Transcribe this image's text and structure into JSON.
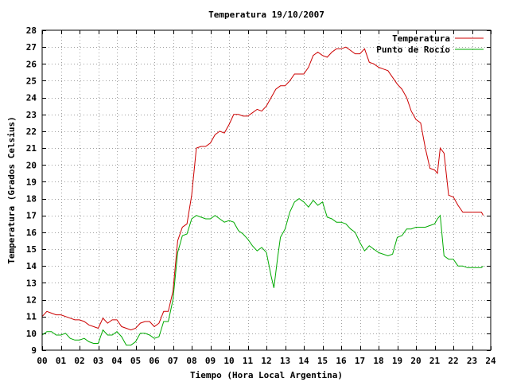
{
  "chart_data": {
    "type": "line",
    "title": "Temperatura 19/10/2007",
    "xlabel": "Tiempo (Hora Local Argentina)",
    "ylabel": "Temperatura (Grados Celsius)",
    "xlim": [
      0,
      24
    ],
    "ylim": [
      9,
      28
    ],
    "x_ticks": [
      "00",
      "01",
      "02",
      "03",
      "04",
      "05",
      "06",
      "07",
      "08",
      "09",
      "10",
      "11",
      "12",
      "13",
      "14",
      "15",
      "16",
      "17",
      "18",
      "19",
      "20",
      "21",
      "22",
      "23",
      "24"
    ],
    "y_ticks": [
      9,
      10,
      11,
      12,
      13,
      14,
      15,
      16,
      17,
      18,
      19,
      20,
      21,
      22,
      23,
      24,
      25,
      26,
      27,
      28
    ],
    "grid": true,
    "legend_position": "top-right",
    "series": [
      {
        "name": "Temperatura",
        "color": "#cc0000",
        "x": [
          0.0,
          0.25,
          0.5,
          0.75,
          1.0,
          1.25,
          1.5,
          1.75,
          2.0,
          2.25,
          2.5,
          2.75,
          3.0,
          3.25,
          3.5,
          3.75,
          4.0,
          4.25,
          4.5,
          4.75,
          5.0,
          5.25,
          5.5,
          5.75,
          6.0,
          6.25,
          6.5,
          6.75,
          7.0,
          7.25,
          7.5,
          7.75,
          8.0,
          8.25,
          8.5,
          8.75,
          9.0,
          9.25,
          9.5,
          9.75,
          10.0,
          10.25,
          10.5,
          10.75,
          11.0,
          11.25,
          11.5,
          11.75,
          12.0,
          12.25,
          12.5,
          12.75,
          13.0,
          13.25,
          13.5,
          13.75,
          14.0,
          14.25,
          14.5,
          14.75,
          15.0,
          15.25,
          15.5,
          15.75,
          16.0,
          16.25,
          16.5,
          16.75,
          17.0,
          17.25,
          17.5,
          17.75,
          18.0,
          18.25,
          18.5,
          18.75,
          19.0,
          19.25,
          19.5,
          19.75,
          20.0,
          20.25,
          20.5,
          20.75,
          21.0,
          21.15,
          21.3,
          21.5,
          21.75,
          22.0,
          22.25,
          22.5,
          22.75,
          23.0,
          23.25,
          23.5,
          23.6
        ],
        "values": [
          11.0,
          11.3,
          11.2,
          11.1,
          11.1,
          11.0,
          10.9,
          10.8,
          10.8,
          10.7,
          10.5,
          10.4,
          10.3,
          10.9,
          10.6,
          10.8,
          10.8,
          10.4,
          10.3,
          10.2,
          10.3,
          10.6,
          10.7,
          10.7,
          10.4,
          10.6,
          11.3,
          11.3,
          12.5,
          15.5,
          16.3,
          16.5,
          18.2,
          21.0,
          21.1,
          21.1,
          21.3,
          21.8,
          22.0,
          21.9,
          22.4,
          23.0,
          23.0,
          22.9,
          22.9,
          23.1,
          23.3,
          23.2,
          23.5,
          24.0,
          24.5,
          24.7,
          24.7,
          25.0,
          25.4,
          25.4,
          25.4,
          25.8,
          26.5,
          26.7,
          26.5,
          26.4,
          26.7,
          26.9,
          26.9,
          27.0,
          26.8,
          26.6,
          26.6,
          26.9,
          26.1,
          26.0,
          25.8,
          25.7,
          25.6,
          25.2,
          24.8,
          24.5,
          24.0,
          23.2,
          22.7,
          22.5,
          21.0,
          19.8,
          19.7,
          19.5,
          21.0,
          20.7,
          18.2,
          18.1,
          17.6,
          17.2,
          17.2,
          17.2,
          17.2,
          17.2,
          17.0
        ]
      },
      {
        "name": "Punto de Rocío",
        "color": "#00aa00",
        "x": [
          0.0,
          0.25,
          0.5,
          0.75,
          1.0,
          1.25,
          1.5,
          1.75,
          2.0,
          2.25,
          2.5,
          2.75,
          3.0,
          3.25,
          3.5,
          3.75,
          4.0,
          4.25,
          4.5,
          4.75,
          5.0,
          5.25,
          5.5,
          5.75,
          6.0,
          6.25,
          6.5,
          6.75,
          7.0,
          7.25,
          7.5,
          7.75,
          8.0,
          8.25,
          8.5,
          8.75,
          9.0,
          9.25,
          9.5,
          9.75,
          10.0,
          10.25,
          10.5,
          10.75,
          11.0,
          11.25,
          11.5,
          11.75,
          12.0,
          12.25,
          12.4,
          12.6,
          12.75,
          13.0,
          13.25,
          13.5,
          13.75,
          14.0,
          14.25,
          14.5,
          14.75,
          15.0,
          15.25,
          15.5,
          15.75,
          16.0,
          16.25,
          16.5,
          16.75,
          17.0,
          17.25,
          17.5,
          17.75,
          18.0,
          18.25,
          18.5,
          18.75,
          19.0,
          19.25,
          19.5,
          19.75,
          20.0,
          20.25,
          20.5,
          20.75,
          21.0,
          21.15,
          21.3,
          21.5,
          21.75,
          22.0,
          22.25,
          22.5,
          22.75,
          23.0,
          23.25,
          23.5,
          23.6
        ],
        "values": [
          9.9,
          10.1,
          10.1,
          9.9,
          9.9,
          10.0,
          9.7,
          9.6,
          9.6,
          9.7,
          9.5,
          9.4,
          9.4,
          10.2,
          9.9,
          9.9,
          10.1,
          9.8,
          9.3,
          9.3,
          9.5,
          10.0,
          10.0,
          9.9,
          9.7,
          9.8,
          10.7,
          10.7,
          12.0,
          14.8,
          15.8,
          15.9,
          16.8,
          17.0,
          16.9,
          16.8,
          16.8,
          17.0,
          16.8,
          16.6,
          16.7,
          16.6,
          16.1,
          15.9,
          15.6,
          15.2,
          14.9,
          15.1,
          14.8,
          13.4,
          12.7,
          14.5,
          15.7,
          16.2,
          17.2,
          17.8,
          18.0,
          17.8,
          17.5,
          17.9,
          17.6,
          17.8,
          16.9,
          16.8,
          16.6,
          16.6,
          16.5,
          16.2,
          16.0,
          15.4,
          14.9,
          15.2,
          15.0,
          14.8,
          14.7,
          14.6,
          14.7,
          15.7,
          15.8,
          16.2,
          16.2,
          16.3,
          16.3,
          16.3,
          16.4,
          16.5,
          16.8,
          17.0,
          14.6,
          14.4,
          14.4,
          14.0,
          14.0,
          13.9,
          13.9,
          13.9,
          13.9,
          14.0
        ]
      }
    ]
  }
}
